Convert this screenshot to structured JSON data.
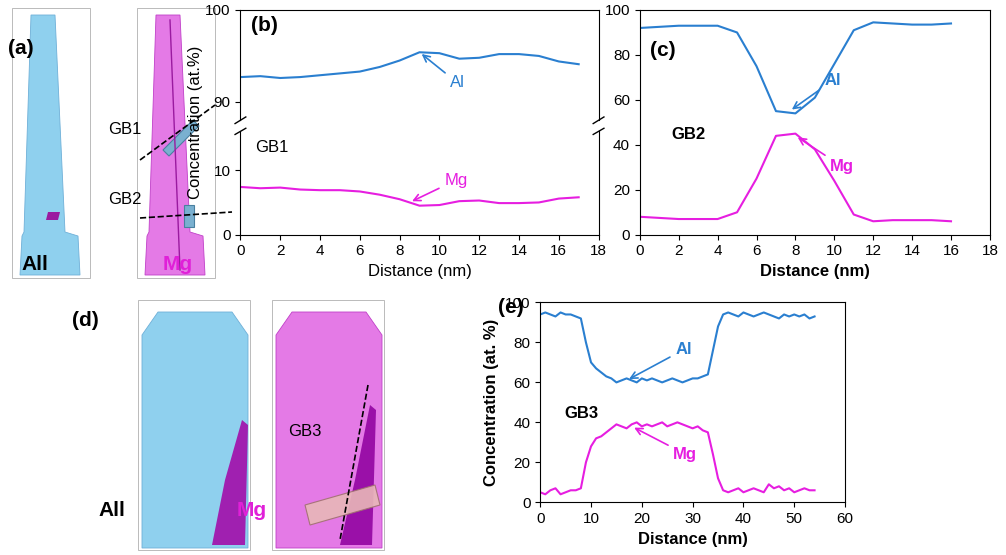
{
  "chart_data": [
    {
      "type": "line",
      "panel": "(b)",
      "title": "GB1",
      "xlabel": "Distance (nm)",
      "ylabel": "Concentration (at.%)",
      "x": [
        0,
        1,
        2,
        3,
        4,
        5,
        6,
        7,
        8,
        9,
        10,
        11,
        12,
        13,
        14,
        15,
        16,
        17
      ],
      "xlim": [
        0,
        18
      ],
      "xticks": [
        0,
        2,
        4,
        6,
        8,
        10,
        12,
        14,
        16,
        18
      ],
      "ylim": [
        [
          0,
          16
        ],
        [
          88,
          100
        ]
      ],
      "yticks": [
        [
          0,
          10
        ],
        [
          90,
          100
        ]
      ],
      "series": [
        {
          "name": "Al",
          "color": "#2a7fd0",
          "values": [
            92.7,
            92.8,
            92.6,
            92.7,
            92.9,
            93.1,
            93.3,
            93.8,
            94.5,
            95.4,
            95.3,
            94.7,
            94.8,
            95.2,
            95.2,
            95.0,
            94.4,
            94.1
          ]
        },
        {
          "name": "Mg",
          "color": "#e61ee0",
          "values": [
            7.4,
            7.2,
            7.3,
            7.0,
            6.9,
            6.9,
            6.7,
            6.2,
            5.5,
            4.5,
            4.6,
            5.2,
            5.3,
            4.9,
            4.9,
            5.0,
            5.6,
            5.8
          ]
        }
      ],
      "annotations": [
        {
          "text": "Al",
          "x": 9,
          "y": 95.4
        },
        {
          "text": "Mg",
          "x": 8.5,
          "y": 5.0
        }
      ]
    },
    {
      "type": "line",
      "panel": "(c)",
      "title": "GB2",
      "xlabel": "Distance (nm)",
      "x": [
        0,
        1,
        2,
        3,
        4,
        5,
        6,
        7,
        8,
        9,
        10,
        11,
        12,
        13,
        14,
        15,
        16
      ],
      "xlim": [
        0,
        18
      ],
      "xticks": [
        0,
        2,
        4,
        6,
        8,
        10,
        12,
        14,
        16,
        18
      ],
      "ylim": [
        0,
        100
      ],
      "yticks": [
        0,
        20,
        40,
        60,
        80,
        100
      ],
      "series": [
        {
          "name": "Al",
          "color": "#2a7fd0",
          "values": [
            92,
            92.5,
            93,
            93,
            93,
            90,
            75,
            55,
            54,
            61,
            76,
            91,
            94.5,
            94,
            93.5,
            93.5,
            94
          ]
        },
        {
          "name": "Mg",
          "color": "#e61ee0",
          "values": [
            8,
            7.5,
            7,
            7,
            7,
            10,
            25,
            44,
            45,
            38,
            24,
            9,
            6,
            6.5,
            6.5,
            6.5,
            6
          ]
        }
      ],
      "annotations": [
        {
          "text": "Al",
          "x": 7.7,
          "y": 55
        },
        {
          "text": "Mg",
          "x": 8,
          "y": 44
        }
      ]
    },
    {
      "type": "line",
      "panel": "(e)",
      "title": "GB3",
      "xlabel": "Distance (nm)",
      "ylabel": "Concentration (at. %)",
      "x": [
        0,
        1,
        2,
        3,
        4,
        5,
        6,
        7,
        8,
        9,
        10,
        11,
        12,
        13,
        14,
        15,
        16,
        17,
        18,
        19,
        20,
        21,
        22,
        23,
        24,
        25,
        26,
        27,
        28,
        29,
        30,
        31,
        32,
        33,
        34,
        35,
        36,
        37,
        38,
        39,
        40,
        41,
        42,
        43,
        44,
        45,
        46,
        47,
        48,
        49,
        50,
        51,
        52,
        53,
        54
      ],
      "xlim": [
        0,
        60
      ],
      "xticks": [
        0,
        10,
        20,
        30,
        40,
        50,
        60
      ],
      "ylim": [
        0,
        100
      ],
      "yticks": [
        0,
        20,
        40,
        60,
        80,
        100
      ],
      "series": [
        {
          "name": "Al",
          "color": "#2a7fd0",
          "values": [
            94,
            95,
            94,
            93,
            95,
            94,
            94,
            93,
            92,
            80,
            70,
            67,
            65,
            63,
            62,
            60,
            61,
            62,
            61,
            60,
            62,
            61,
            62,
            61,
            60,
            61,
            62,
            61,
            60,
            61,
            62,
            62,
            63,
            64,
            76,
            88,
            94,
            95,
            94,
            93,
            95,
            94,
            93,
            94,
            95,
            94,
            93,
            92,
            94,
            93,
            94,
            93,
            94,
            92,
            93
          ]
        },
        {
          "name": "Mg",
          "color": "#e61ee0",
          "values": [
            5,
            4,
            6,
            7,
            4,
            5,
            6,
            6,
            7,
            20,
            28,
            32,
            33,
            35,
            37,
            39,
            38,
            37,
            39,
            40,
            38,
            39,
            38,
            39,
            40,
            38,
            39,
            40,
            39,
            38,
            37,
            38,
            36,
            35,
            24,
            12,
            6,
            5,
            6,
            7,
            5,
            6,
            7,
            6,
            5,
            9,
            7,
            8,
            6,
            7,
            5,
            6,
            7,
            6,
            6
          ]
        }
      ],
      "annotations": [
        {
          "text": "Al",
          "x": 17,
          "y": 61
        },
        {
          "text": "Mg",
          "x": 18,
          "y": 38
        }
      ]
    }
  ],
  "reconstructions": [
    {
      "panel": "(a)",
      "maps": [
        "All",
        "Mg"
      ],
      "interfaces": [
        "GB1",
        "GB2"
      ]
    },
    {
      "panel": "(d)",
      "maps": [
        "All",
        "Mg"
      ],
      "interfaces": [
        "GB3"
      ]
    }
  ]
}
